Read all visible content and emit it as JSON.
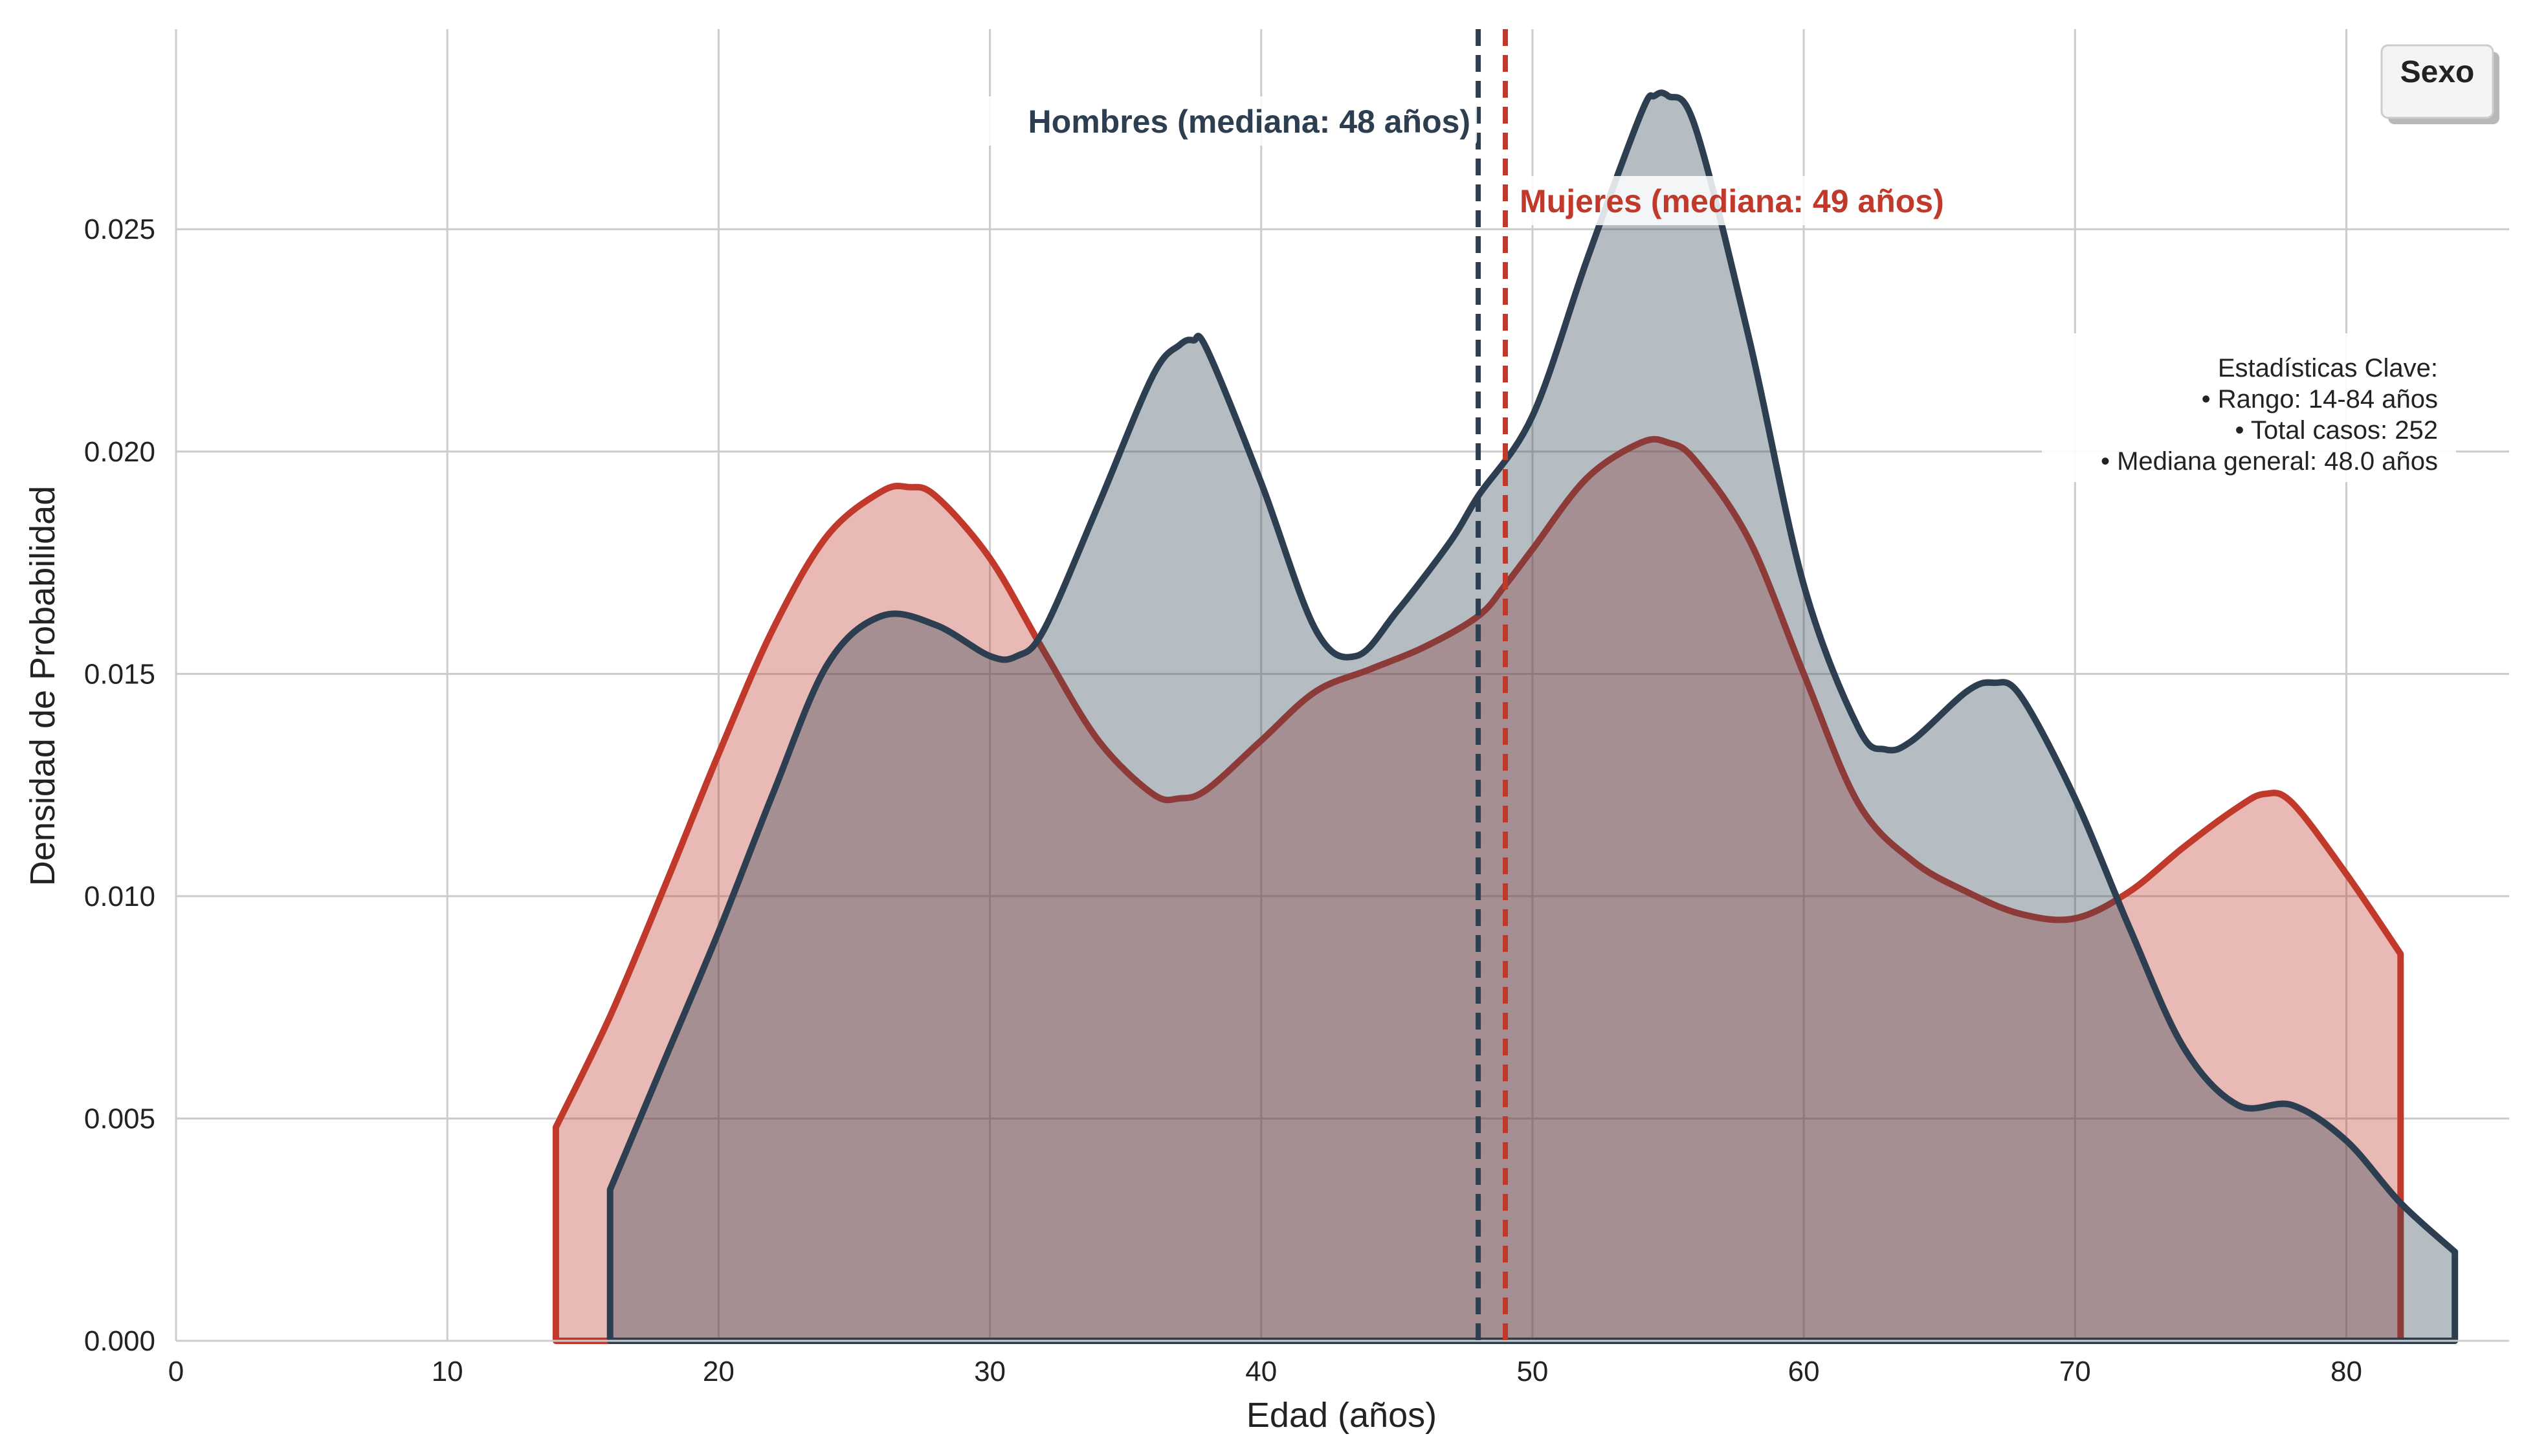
{
  "chart_data": {
    "type": "area",
    "xlabel": "Edad (años)",
    "ylabel": "Densidad de Probabilidad",
    "xlim": [
      0,
      86
    ],
    "ylim": [
      0,
      0.0295
    ],
    "xticks": [
      0,
      10,
      20,
      30,
      40,
      50,
      60,
      70,
      80
    ],
    "yticks": [
      0.0,
      0.005,
      0.01,
      0.015,
      0.02,
      0.025
    ],
    "grid": true,
    "legend": {
      "title": "Sexo",
      "placement": "top-right"
    },
    "series": [
      {
        "color": "#c0392b",
        "fill_opacity": 0.35,
        "x": [
          14,
          16,
          18,
          20,
          22,
          24,
          26,
          27,
          28,
          30,
          32,
          34,
          36,
          37,
          38,
          40,
          42,
          44,
          46,
          48,
          49,
          50,
          52,
          54,
          55,
          56,
          58,
          60,
          62,
          64,
          66,
          68,
          70,
          72,
          74,
          76,
          77,
          78,
          80,
          82
        ],
        "y": [
          0.0048,
          0.0073,
          0.0102,
          0.0132,
          0.016,
          0.0181,
          0.0191,
          0.0192,
          0.019,
          0.0176,
          0.0155,
          0.0135,
          0.0123,
          0.0122,
          0.0124,
          0.0135,
          0.0146,
          0.0151,
          0.0156,
          0.0163,
          0.017,
          0.0178,
          0.0194,
          0.0202,
          0.0202,
          0.0198,
          0.018,
          0.015,
          0.0121,
          0.0108,
          0.0101,
          0.0096,
          0.0095,
          0.0101,
          0.0111,
          0.012,
          0.0123,
          0.0121,
          0.0105,
          0.0087
        ]
      },
      {
        "color": "#2c3e50",
        "fill_opacity": 0.35,
        "x": [
          16,
          18,
          20,
          22,
          24,
          26,
          28,
          30,
          31,
          32,
          34,
          36,
          37,
          37.5,
          38,
          40,
          42,
          43.5,
          45,
          47,
          48,
          50,
          52,
          54,
          54.5,
          55,
          56,
          58,
          60,
          62,
          63,
          64,
          66,
          67,
          68,
          70,
          72,
          74,
          76,
          78,
          80,
          82,
          84
        ],
        "y": [
          0.0034,
          0.0063,
          0.0092,
          0.0123,
          0.0152,
          0.0163,
          0.0161,
          0.0154,
          0.0154,
          0.016,
          0.0188,
          0.0217,
          0.0224,
          0.0225,
          0.0223,
          0.0193,
          0.016,
          0.0154,
          0.0164,
          0.018,
          0.019,
          0.0208,
          0.0243,
          0.0276,
          0.028,
          0.028,
          0.0273,
          0.0225,
          0.017,
          0.0138,
          0.0133,
          0.0135,
          0.0146,
          0.0148,
          0.0145,
          0.0122,
          0.0093,
          0.0066,
          0.0053,
          0.0053,
          0.0045,
          0.0031,
          0.002
        ]
      }
    ],
    "medians": [
      {
        "x": 48,
        "color": "#2c3e50",
        "label": "Hombres (mediana: 48 años)"
      },
      {
        "x": 49,
        "color": "#c0392b",
        "label": "Mujeres (mediana: 49 años)"
      }
    ],
    "stats_box": {
      "lines": [
        "Estadísticas Clave:",
        "• Rango: 14-84 años",
        "• Total casos: 252",
        "• Mediana general: 48.0 años"
      ]
    }
  }
}
